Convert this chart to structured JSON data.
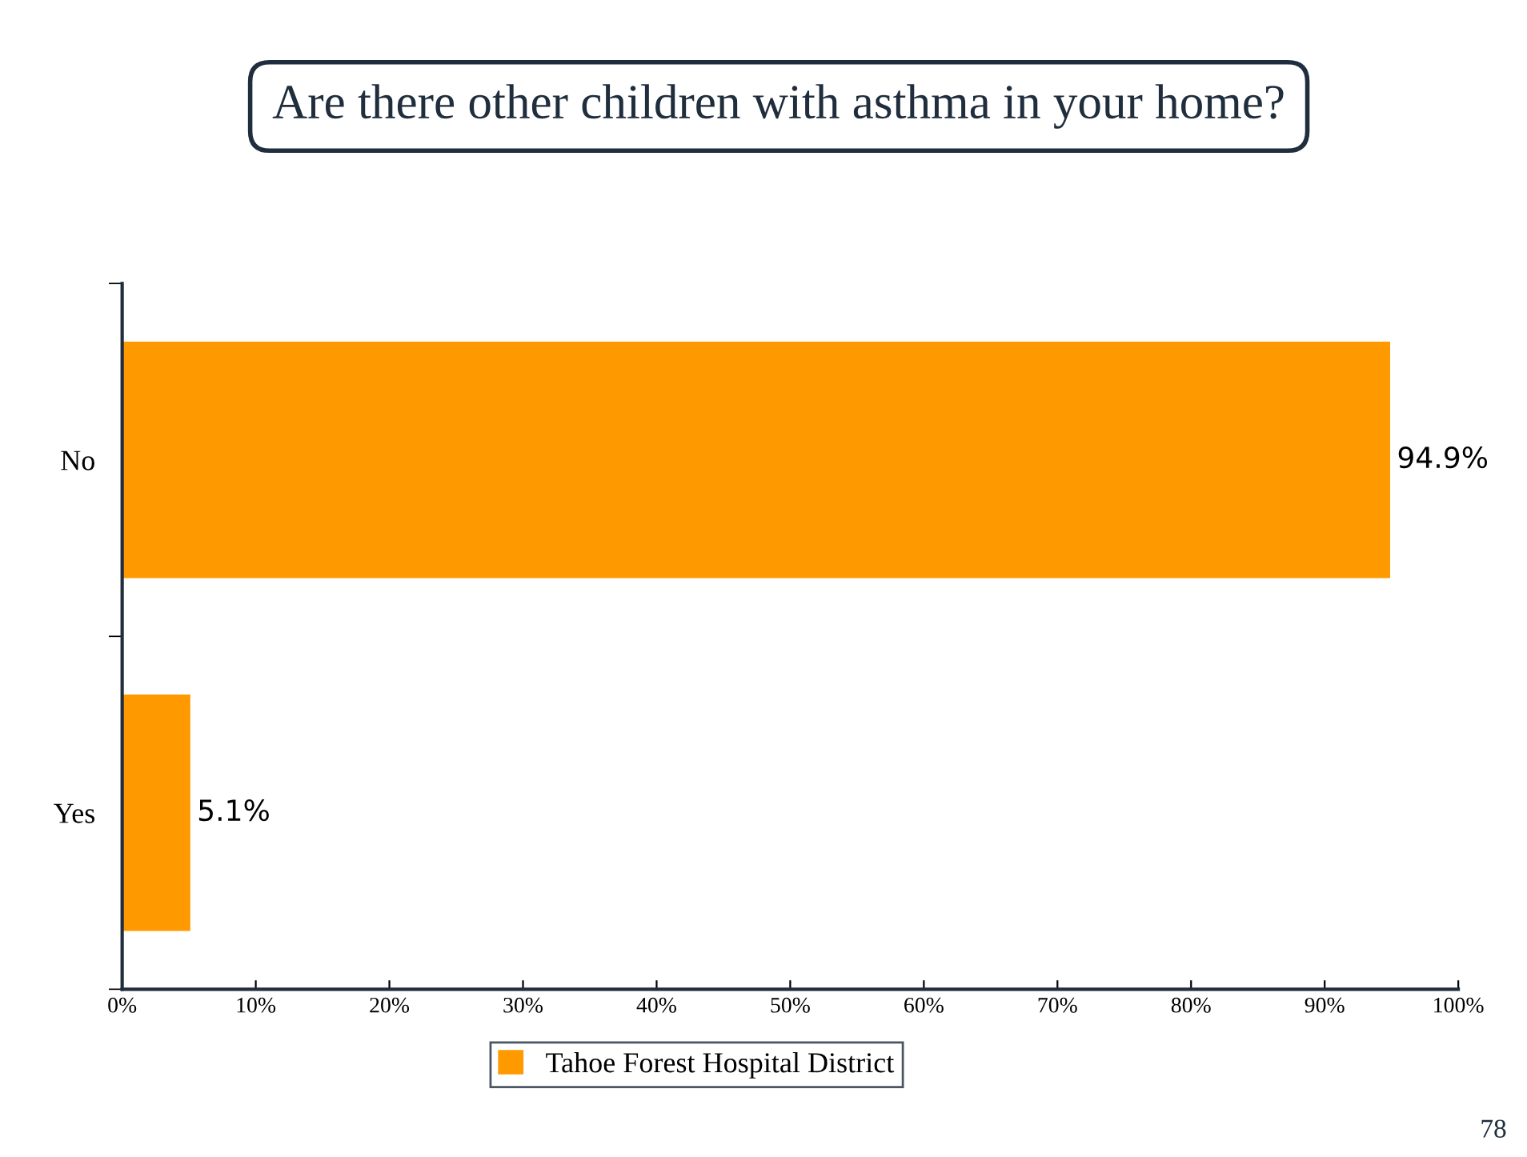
{
  "chart_data": {
    "type": "bar",
    "orientation": "horizontal",
    "title": "Are there other children with asthma in your home?",
    "categories": [
      "No",
      "Yes"
    ],
    "series": [
      {
        "name": "Tahoe Forest Hospital District",
        "color": "#ff9900",
        "values": [
          94.9,
          5.1
        ],
        "value_labels": [
          "94.9%",
          "5.1%"
        ]
      }
    ],
    "xlim": [
      0,
      100
    ],
    "xticks": [
      {
        "value": 0,
        "label": "0%"
      },
      {
        "value": 10,
        "label": "10%"
      },
      {
        "value": 20,
        "label": "20%"
      },
      {
        "value": 30,
        "label": "30%"
      },
      {
        "value": 40,
        "label": "40%"
      },
      {
        "value": 50,
        "label": "50%"
      },
      {
        "value": 60,
        "label": "60%"
      },
      {
        "value": 70,
        "label": "70%"
      },
      {
        "value": 80,
        "label": "80%"
      },
      {
        "value": 90,
        "label": "90%"
      },
      {
        "value": 100,
        "label": "100%"
      }
    ],
    "legend": "bottom",
    "grid": false,
    "annotations": [
      "78"
    ]
  }
}
